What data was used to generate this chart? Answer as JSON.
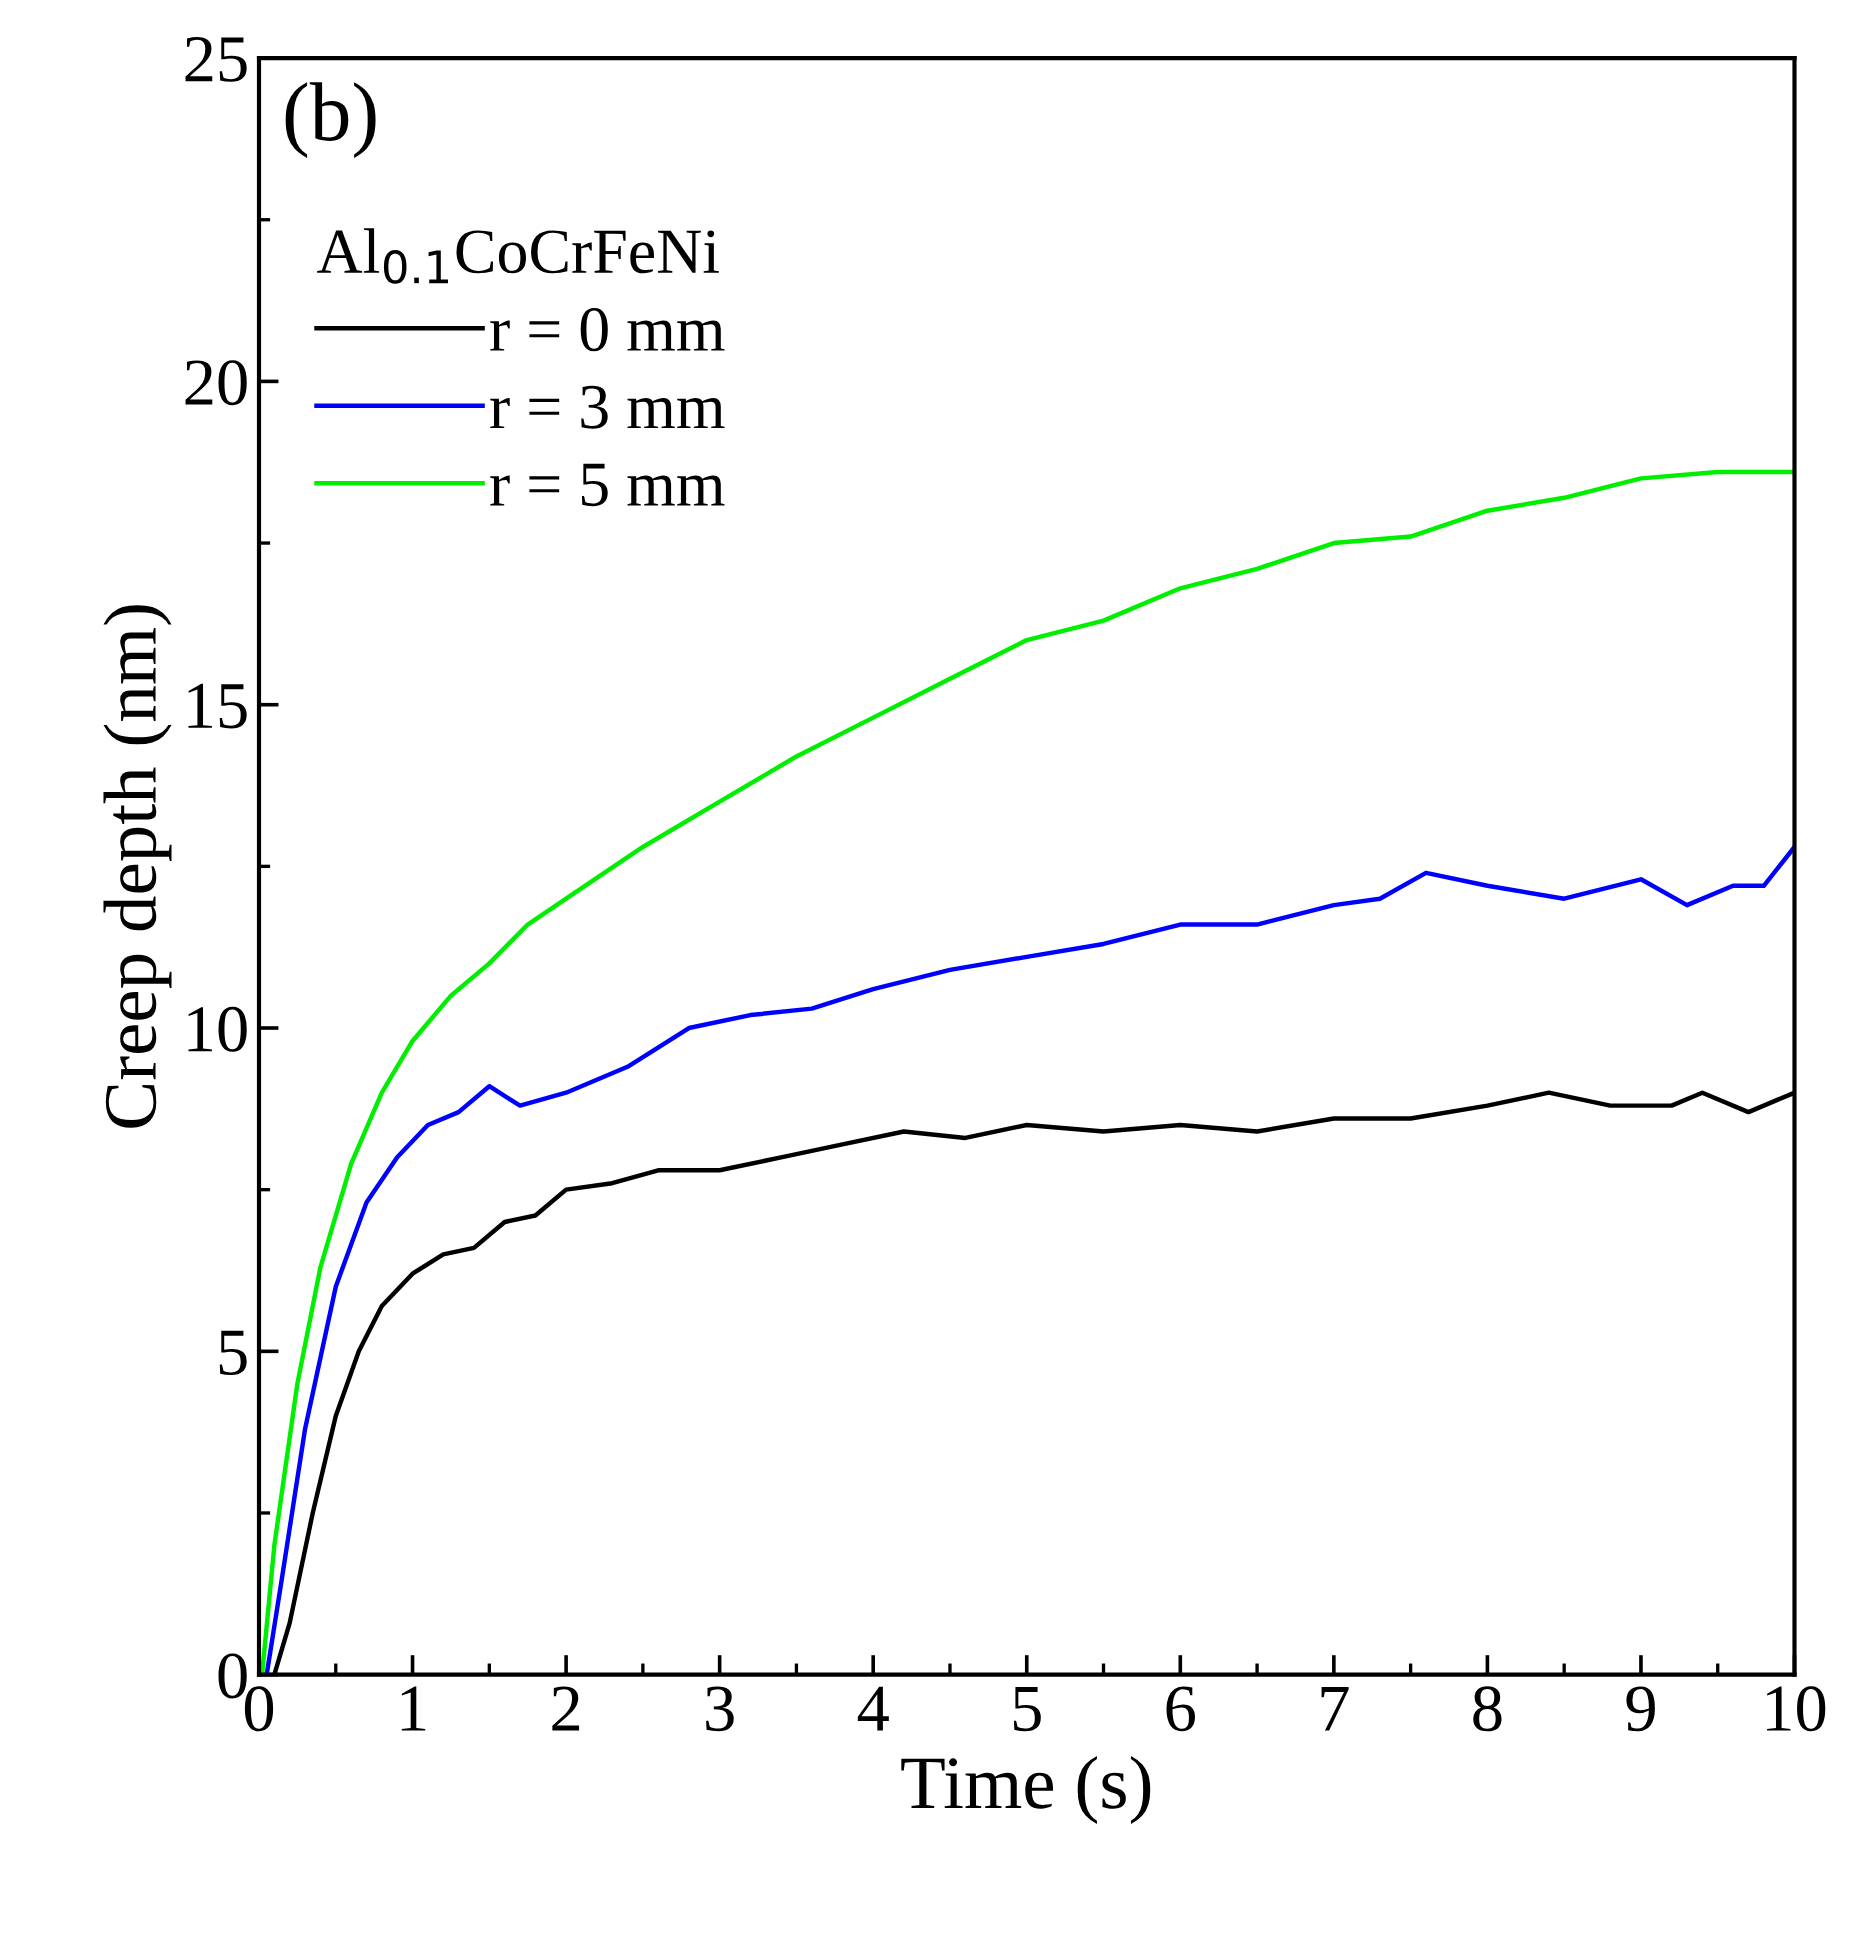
{
  "chart_data": {
    "type": "line",
    "xlabel": "Time (s)",
    "ylabel": "Creep depth (nm)",
    "legend_title": "Al$_{0.1}$CoCrFeNi",
    "annotations": [
      "(b)"
    ],
    "xlim": [
      0,
      10
    ],
    "ylim": [
      0,
      25
    ],
    "xticks": [
      0,
      1,
      2,
      3,
      4,
      5,
      6,
      7,
      8,
      9,
      10
    ],
    "yticks": [
      0,
      5,
      10,
      15,
      20,
      25
    ],
    "legend": "top left",
    "grid": false,
    "marker": "none",
    "line_style": "solid",
    "series": [
      {
        "name": "r = 0 mm",
        "color": "#000000",
        "x": [
          0.1,
          0.2,
          0.35,
          0.5,
          0.65,
          0.8,
          1.0,
          1.2,
          1.4,
          1.6,
          1.8,
          2.0,
          2.3,
          2.6,
          3.0,
          3.4,
          3.8,
          4.2,
          4.6,
          5.0,
          5.5,
          6.0,
          6.5,
          7.0,
          7.5,
          8.0,
          8.4,
          8.8,
          9.2,
          9.4,
          9.7,
          10.0
        ],
        "values": [
          0,
          0.8,
          2.5,
          4.0,
          5.0,
          5.7,
          6.2,
          6.5,
          6.6,
          7.0,
          7.1,
          7.5,
          7.6,
          7.8,
          7.8,
          8.0,
          8.2,
          8.4,
          8.3,
          8.5,
          8.4,
          8.5,
          8.4,
          8.6,
          8.6,
          8.8,
          9.0,
          8.8,
          8.8,
          9.0,
          8.7,
          9.0
        ]
      },
      {
        "name": "r = 3 mm",
        "color": "#0000ff",
        "x": [
          0.05,
          0.15,
          0.3,
          0.5,
          0.7,
          0.9,
          1.1,
          1.3,
          1.5,
          1.7,
          2.0,
          2.4,
          2.8,
          3.2,
          3.6,
          4.0,
          4.5,
          5.0,
          5.5,
          6.0,
          6.5,
          7.0,
          7.3,
          7.6,
          8.0,
          8.5,
          9.0,
          9.3,
          9.6,
          9.8,
          10.0
        ],
        "values": [
          0,
          1.5,
          3.8,
          6.0,
          7.3,
          8.0,
          8.5,
          8.7,
          9.1,
          8.8,
          9.0,
          9.4,
          10.0,
          10.2,
          10.3,
          10.6,
          10.9,
          11.1,
          11.3,
          11.6,
          11.6,
          11.9,
          12.0,
          12.4,
          12.2,
          12.0,
          12.3,
          11.9,
          12.2,
          12.2,
          12.8
        ]
      },
      {
        "name": "r = 5 mm",
        "color": "#00ee00",
        "x": [
          0.02,
          0.1,
          0.25,
          0.4,
          0.6,
          0.8,
          1.0,
          1.25,
          1.5,
          1.75,
          2.0,
          2.5,
          3.0,
          3.5,
          4.0,
          4.5,
          5.0,
          5.5,
          6.0,
          6.5,
          7.0,
          7.5,
          8.0,
          8.5,
          9.0,
          9.5,
          10.0
        ],
        "values": [
          0,
          2.0,
          4.5,
          6.3,
          7.9,
          9.0,
          9.8,
          10.5,
          11.0,
          11.6,
          12.0,
          12.8,
          13.5,
          14.2,
          14.8,
          15.4,
          16.0,
          16.3,
          16.8,
          17.1,
          17.5,
          17.6,
          18.0,
          18.2,
          18.5,
          18.6,
          18.6
        ]
      }
    ]
  }
}
